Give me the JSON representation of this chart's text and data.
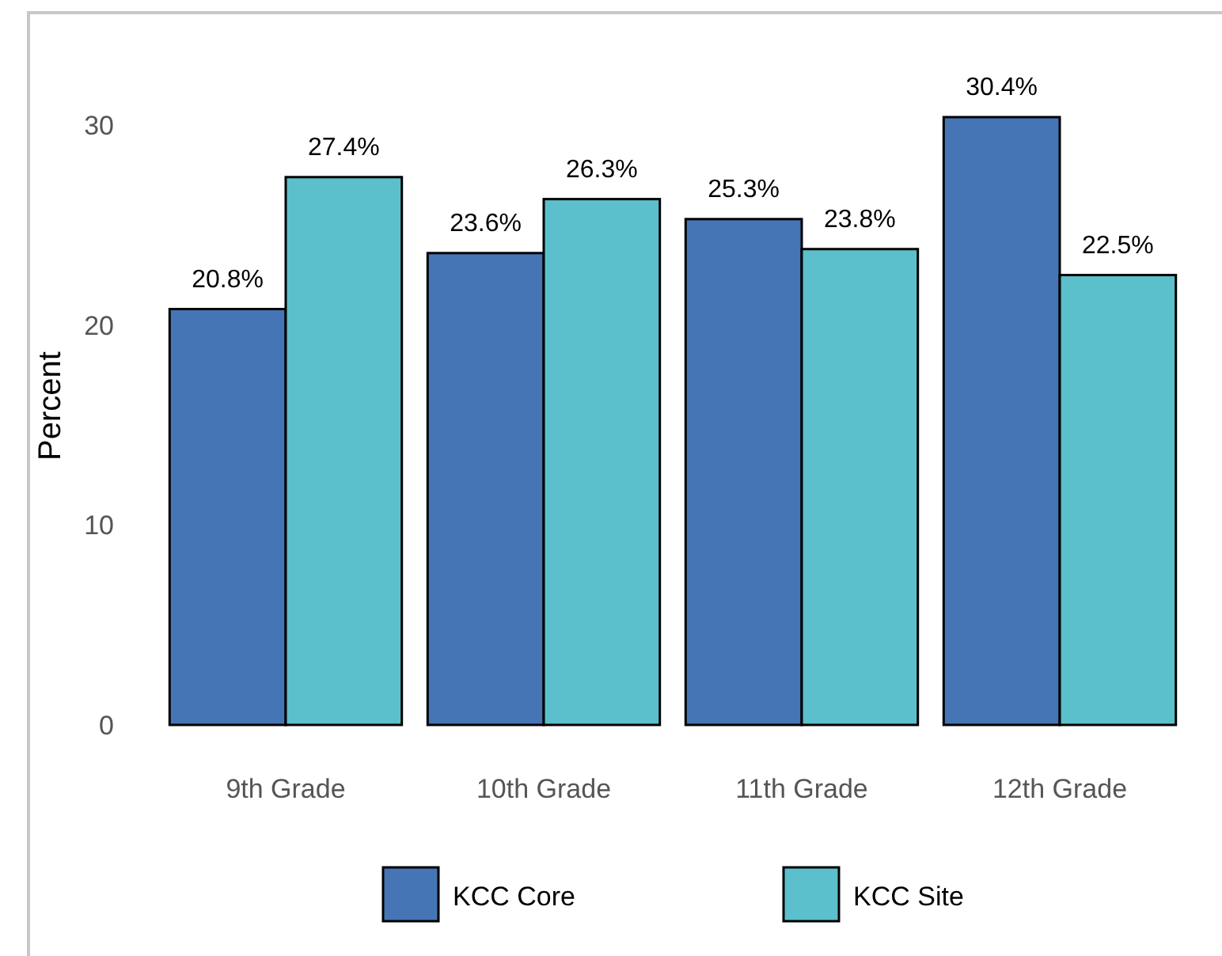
{
  "chart_data": {
    "type": "bar",
    "ylabel": "Percent",
    "categories": [
      "9th Grade",
      "10th Grade",
      "11th Grade",
      "12th Grade"
    ],
    "series": [
      {
        "name": "KCC Core",
        "color": "#4575b4",
        "values": [
          20.8,
          23.6,
          25.3,
          30.4
        ],
        "value_labels": [
          "20.8%",
          "23.6%",
          "25.3%",
          "30.4%"
        ]
      },
      {
        "name": "KCC Site",
        "color": "#5bc0cb",
        "values": [
          27.4,
          26.3,
          23.8,
          22.5
        ],
        "value_labels": [
          "27.4%",
          "26.3%",
          "23.8%",
          "22.5%"
        ]
      }
    ],
    "ylim": [
      0,
      30.4
    ],
    "yticks": [
      0,
      10,
      20,
      30
    ],
    "grid": false,
    "legend": "bottom"
  }
}
